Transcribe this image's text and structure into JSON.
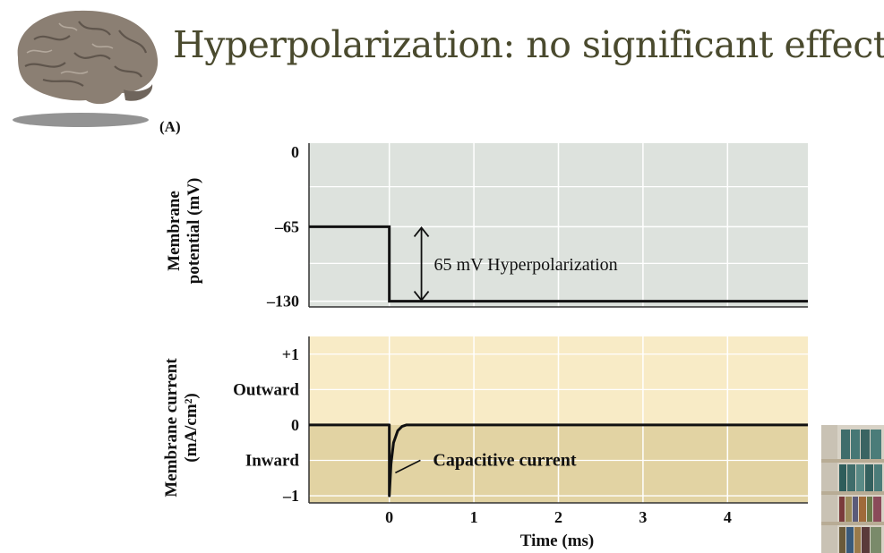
{
  "slide": {
    "title": "Hyperpolarization: no significant effects",
    "panel_label": "(A)"
  },
  "chart_data": [
    {
      "type": "line",
      "ylabel_line1": "Membrane",
      "ylabel_line2": "potential (mV)",
      "ytick_labels": [
        "0",
        "–65",
        "–130"
      ],
      "yticks": [
        0,
        -65,
        -130
      ],
      "ylim": [
        -135,
        8
      ],
      "xlim": [
        -0.95,
        4.95
      ],
      "grid": true,
      "background": "#dde2dd",
      "series": [
        {
          "x": [
            -0.95,
            0,
            0,
            4.95
          ],
          "y": [
            -65,
            -65,
            -130,
            -130
          ]
        }
      ],
      "annotation": {
        "text": "65 mV Hyperpolarization",
        "x": 0.38,
        "y_from": -65,
        "y_to": -130
      }
    },
    {
      "type": "line",
      "ylabel_line1": "Membrane current",
      "ylabel_line2": "(mA/cm²)",
      "ytick_labels": [
        "+1",
        "0",
        "–1"
      ],
      "yticks": [
        1,
        0,
        -1
      ],
      "outward_label": "Outward",
      "inward_label": "Inward",
      "ylim": [
        -1.1,
        1.25
      ],
      "xlim": [
        -0.95,
        4.95
      ],
      "xtick_labels": [
        "0",
        "1",
        "2",
        "3",
        "4"
      ],
      "xticks": [
        0,
        1,
        2,
        3,
        4
      ],
      "xlabel": "Time (ms)",
      "grid": true,
      "background_top": "#f8ebc6",
      "background_bottom": "#e2d3a3",
      "series": [
        {
          "x": [
            -0.95,
            0,
            0,
            0.02,
            0.05,
            0.1,
            0.15,
            0.2,
            4.95
          ],
          "y": [
            0,
            0,
            -1,
            -0.55,
            -0.25,
            -0.08,
            -0.02,
            0,
            0
          ]
        }
      ],
      "annotation": {
        "text": "Capacitive current",
        "point_x": 0.05,
        "point_y": -0.65
      }
    }
  ],
  "colors": {
    "title": "#4a4a2e",
    "trace": "#111111",
    "grid": "#ffffff"
  }
}
